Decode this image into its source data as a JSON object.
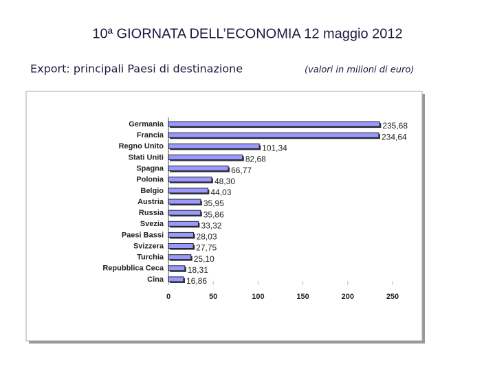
{
  "chart_data": {
    "type": "bar",
    "orientation": "horizontal",
    "title": "10ª GIORNATA DELL’ECONOMIA  12 maggio 2012",
    "subtitle": "Export: principali Paesi di destinazione",
    "note": "(valori in milioni di euro)",
    "categories": [
      "Germania",
      "Francia",
      "Regno Unito",
      "Stati Uniti",
      "Spagna",
      "Polonia",
      "Belgio",
      "Austria",
      "Russia",
      "Svezia",
      "Paesi Bassi",
      "Svizzera",
      "Turchia",
      "Repubblica Ceca",
      "Cina"
    ],
    "values": [
      235.68,
      234.64,
      101.34,
      82.68,
      66.77,
      48.3,
      44.03,
      35.95,
      35.86,
      33.32,
      28.03,
      27.75,
      25.1,
      18.31,
      16.86
    ],
    "value_labels": [
      "235,68",
      "234,64",
      "101,34",
      "82,68",
      "66,77",
      "48,30",
      "44,03",
      "35,95",
      "35,86",
      "33,32",
      "28,03",
      "27,75",
      "25,10",
      "18,31",
      "16,86"
    ],
    "color": "#9999ff",
    "xlim": [
      0,
      250
    ],
    "xticks": [
      0,
      50,
      100,
      150,
      200,
      250
    ],
    "grid": false
  }
}
